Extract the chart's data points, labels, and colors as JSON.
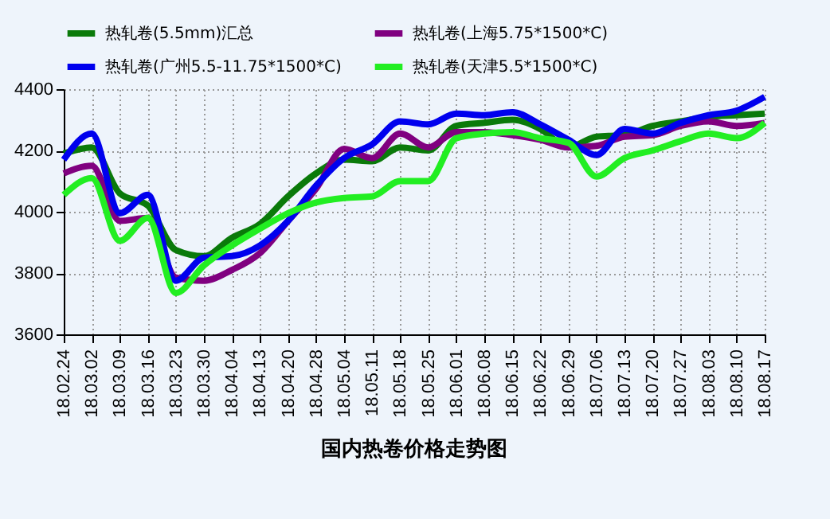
{
  "chart_data": {
    "type": "line",
    "title": "国内热卷价格走势图",
    "categories": [
      "18.02.24",
      "18.03.02",
      "18.03.09",
      "18.03.16",
      "18.03.23",
      "18.03.30",
      "18.04.04",
      "18.04.13",
      "18.04.20",
      "18.04.28",
      "18.05.04",
      "18.05.11",
      "18.05.18",
      "18.05.25",
      "18.06.01",
      "18.06.08",
      "18.06.15",
      "18.06.22",
      "18.06.29",
      "18.07.06",
      "18.07.13",
      "18.07.20",
      "18.07.27",
      "18.08.03",
      "18.08.10",
      "18.08.17"
    ],
    "series": [
      {
        "name": "热轧卷(5.5mm)汇总",
        "color": "#0a7a0a",
        "values": [
          4190,
          4210,
          4060,
          4020,
          3875,
          3855,
          3915,
          3960,
          4050,
          4125,
          4170,
          4165,
          4210,
          4200,
          4280,
          4290,
          4300,
          4270,
          4210,
          4245,
          4250,
          4280,
          4295,
          4310,
          4315,
          4320
        ]
      },
      {
        "name": "热轧卷(上海5.75*1500*C)",
        "color": "#800080",
        "values": [
          4125,
          4150,
          3970,
          3980,
          3785,
          3775,
          3810,
          3865,
          3970,
          4075,
          4205,
          4175,
          4255,
          4210,
          4260,
          4260,
          4250,
          4235,
          4210,
          4215,
          4245,
          4250,
          4280,
          4295,
          4280,
          4290
        ]
      },
      {
        "name": "热轧卷(广州5.5-11.75*1500*C)",
        "color": "#0000ee",
        "values": [
          4170,
          4255,
          3995,
          4055,
          3775,
          3850,
          3855,
          3890,
          3970,
          4085,
          4175,
          4220,
          4295,
          4285,
          4320,
          4315,
          4325,
          4285,
          4235,
          4185,
          4270,
          4255,
          4290,
          4315,
          4330,
          4375
        ]
      },
      {
        "name": "热轧卷(天津5.5*1500*C)",
        "color": "#22ee22",
        "values": [
          4055,
          4110,
          3905,
          3980,
          3735,
          3825,
          3890,
          3945,
          3995,
          4030,
          4045,
          4050,
          4100,
          4100,
          4240,
          4255,
          4260,
          4240,
          4225,
          4115,
          4175,
          4200,
          4230,
          4255,
          4240,
          4290
        ]
      }
    ],
    "ylim": [
      3600,
      4400
    ],
    "yticks": [
      3600,
      3800,
      4000,
      4200,
      4400
    ],
    "grid": true,
    "legend": "top",
    "line_style": "solid"
  }
}
